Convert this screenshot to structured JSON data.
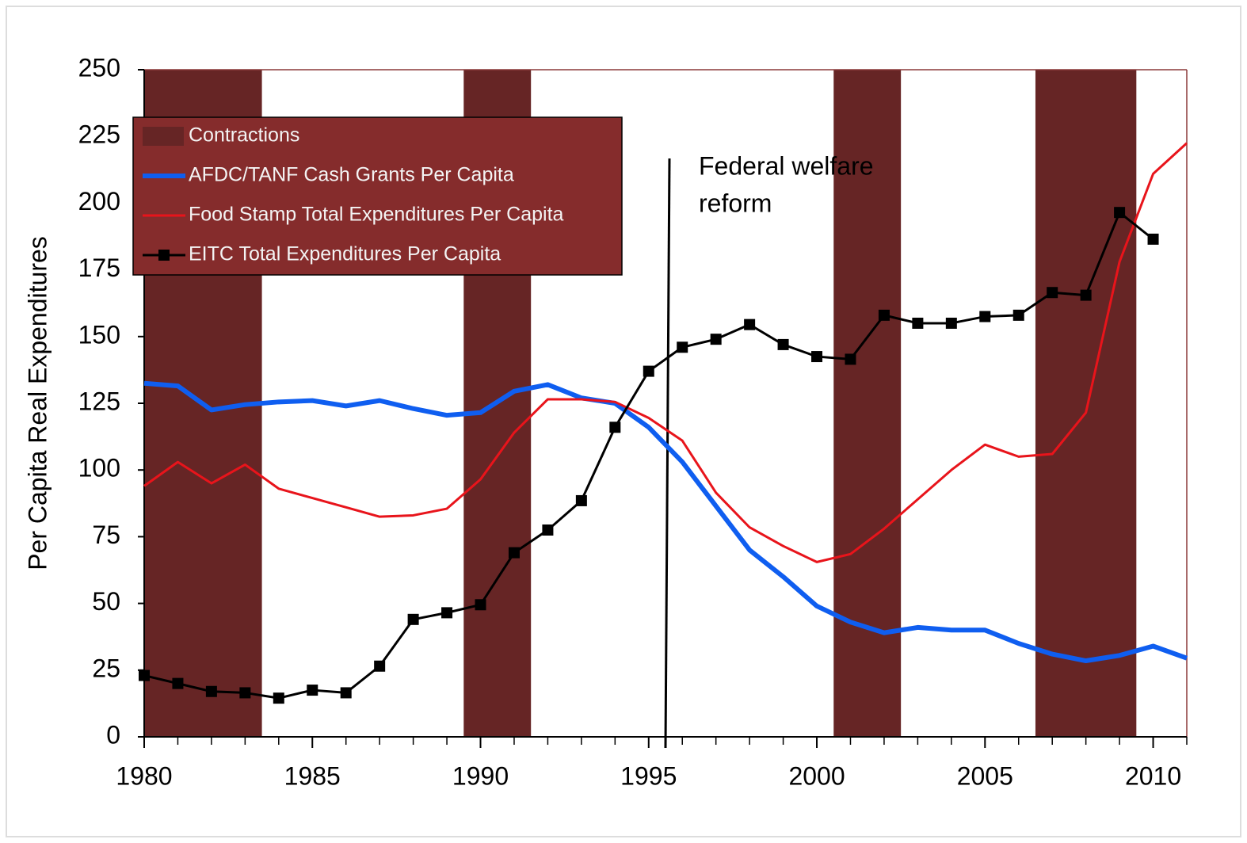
{
  "chart_data": {
    "type": "line",
    "ylabel": "Per Capita Real Expenditures",
    "x": [
      1980,
      1981,
      1982,
      1983,
      1984,
      1985,
      1986,
      1987,
      1988,
      1989,
      1990,
      1991,
      1992,
      1993,
      1994,
      1995,
      1996,
      1997,
      1998,
      1999,
      2000,
      2001,
      2002,
      2003,
      2004,
      2005,
      2006,
      2007,
      2008,
      2009,
      2010,
      2011
    ],
    "xlim": [
      1980,
      2011
    ],
    "xticks": [
      1980,
      1985,
      1990,
      1995,
      2000,
      2005,
      2010
    ],
    "xminorticks": [
      1980,
      1981,
      1982,
      1983,
      1984,
      1985,
      1986,
      1987,
      1988,
      1989,
      1990,
      1991,
      1992,
      1993,
      1994,
      1995,
      1996,
      1997,
      1998,
      1999,
      2000,
      2001,
      2002,
      2003,
      2004,
      2005,
      2006,
      2007,
      2008,
      2009,
      2010,
      2011
    ],
    "ylim": [
      0,
      250
    ],
    "yticks": [
      0,
      25,
      50,
      75,
      100,
      125,
      150,
      175,
      200,
      225,
      250
    ],
    "shaded": {
      "name": "Contractions",
      "color": "#662525",
      "periods": [
        [
          1980,
          1983.5
        ],
        [
          1989.5,
          1991.5
        ],
        [
          2000.5,
          2002.5
        ],
        [
          2006.5,
          2009.5
        ]
      ]
    },
    "series": [
      {
        "name": "AFDC/TANF Cash Grants Per Capita",
        "color": "#0f5ef0",
        "width": 6,
        "marker": false,
        "values": [
          132.5,
          131.5,
          122.5,
          124.5,
          125.5,
          126,
          124,
          126,
          123,
          120.5,
          121.5,
          129.5,
          132,
          127,
          125,
          116,
          103,
          86.5,
          70,
          60,
          49,
          43,
          39,
          41,
          40,
          40,
          35,
          31,
          28.5,
          30.5,
          34,
          29.5
        ]
      },
      {
        "name": "Food Stamp Total Expenditures Per Capita",
        "color": "#e8141b",
        "width": 3,
        "marker": false,
        "values": [
          94,
          103,
          95,
          102,
          93,
          89.5,
          86,
          82.5,
          83,
          85.5,
          96.5,
          114,
          126.5,
          126.5,
          125.5,
          119.5,
          111,
          91.5,
          78.5,
          71.5,
          65.5,
          68.5,
          78,
          89,
          100,
          109.5,
          105,
          106,
          121.5,
          178,
          211,
          222.5
        ]
      },
      {
        "name": "EITC Total Expenditures Per Capita",
        "color": "#000000",
        "width": 3,
        "marker": true,
        "values": [
          23,
          20,
          17,
          16.5,
          14.5,
          17.5,
          16.5,
          26.5,
          44,
          46.5,
          49.5,
          69,
          77.5,
          88.5,
          116,
          137,
          146,
          149,
          154.5,
          147,
          142.5,
          141.5,
          158,
          155,
          155,
          157.5,
          158,
          166.5,
          165.5,
          196.5,
          186.5,
          null
        ]
      }
    ],
    "annotation": {
      "lines": [
        "Federal welfare",
        "reform"
      ],
      "x": 1995.5
    }
  }
}
